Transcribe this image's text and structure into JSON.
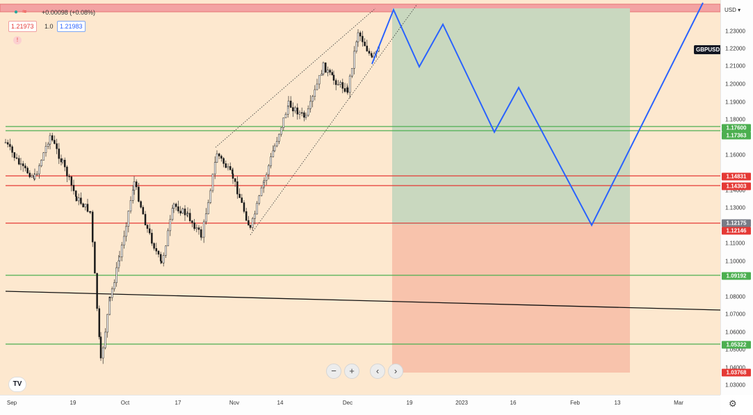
{
  "header": {
    "change": "+0.00098 (+0.08%)",
    "bid": "1.21973",
    "spread": "1.0",
    "ask": "1.21983",
    "alert_icon": "alert-icon"
  },
  "symbol": "GBPUSD",
  "currency_menu": "USD",
  "y_axis_ticks": [
    "1.23000",
    "1.22000",
    "1.21000",
    "1.20000",
    "1.19000",
    "1.18000",
    "1.16000",
    "1.14000",
    "1.13000",
    "1.11000",
    "1.10000",
    "1.08000",
    "1.07000",
    "1.06000",
    "1.05000",
    "1.04000",
    "1.03000"
  ],
  "price_labels": [
    {
      "text": "1.17600",
      "color": "#4caf50",
      "value": 1.176
    },
    {
      "text": "1.17363",
      "color": "#4caf50",
      "value": 1.17363
    },
    {
      "text": "1.14831",
      "color": "#e53935",
      "value": 1.14831
    },
    {
      "text": "1.14303",
      "color": "#e53935",
      "value": 1.14303
    },
    {
      "text": "1.12175",
      "color": "#787b86",
      "value": 1.12175
    },
    {
      "text": "1.12146",
      "color": "#e53935",
      "value": 1.12146
    },
    {
      "text": "1.09192",
      "color": "#4caf50",
      "value": 1.09192
    },
    {
      "text": "1.05322",
      "color": "#4caf50",
      "value": 1.05322
    },
    {
      "text": "1.03768",
      "color": "#e53935",
      "value": 1.03768
    }
  ],
  "x_axis_ticks": [
    "Sep",
    "19",
    "Oct",
    "17",
    "Nov",
    "14",
    "Dec",
    "19",
    "2023",
    "16",
    "Feb",
    "13",
    "Mar"
  ],
  "nav_buttons": {
    "zoom_out": "−",
    "zoom_in": "+",
    "scroll_left": "‹",
    "scroll_right": "›"
  },
  "colors": {
    "background": "#fde8cf",
    "green_zone": "#c9d8bf",
    "red_zone": "#f8c3ac",
    "projection": "#2962ff"
  }
}
